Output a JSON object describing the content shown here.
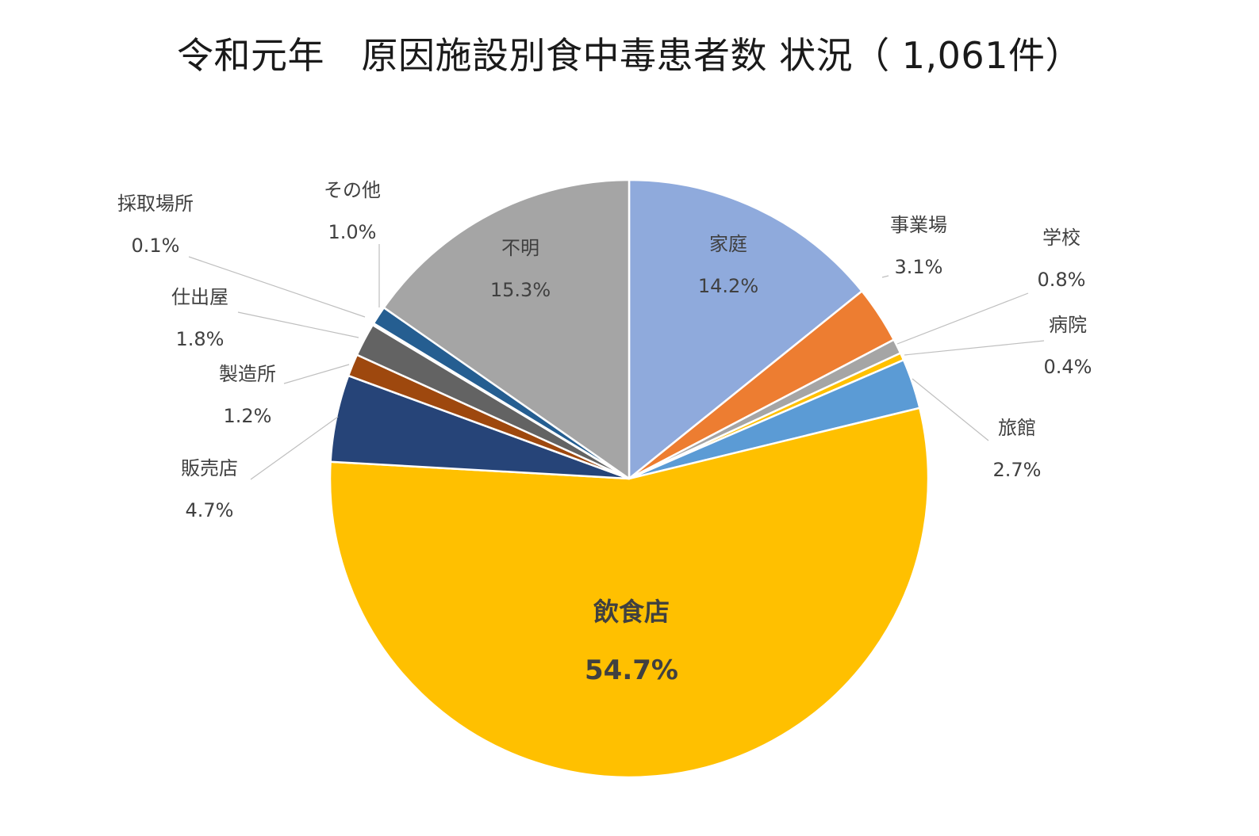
{
  "chart_data": {
    "type": "pie",
    "title": "令和元年　原因施設別食中毒患者数 状況（ 1,061件）",
    "unit": "%",
    "slices": [
      {
        "name": "家庭",
        "value": 14.2,
        "label": "14.2%",
        "color": "#8faadc"
      },
      {
        "name": "事業場",
        "value": 3.1,
        "label": "3.1%",
        "color": "#ed7d31"
      },
      {
        "name": "学校",
        "value": 0.8,
        "label": "0.8%",
        "color": "#a5a5a5"
      },
      {
        "name": "病院",
        "value": 0.4,
        "label": "0.4%",
        "color": "#ffc000"
      },
      {
        "name": "旅館",
        "value": 2.7,
        "label": "2.7%",
        "color": "#5b9bd5"
      },
      {
        "name": "飲食店",
        "value": 54.7,
        "label": "54.7%",
        "color": "#ffc000"
      },
      {
        "name": "販売店",
        "value": 4.7,
        "label": "4.7%",
        "color": "#264478"
      },
      {
        "name": "製造所",
        "value": 1.2,
        "label": "1.2%",
        "color": "#9e480e"
      },
      {
        "name": "仕出屋",
        "value": 1.8,
        "label": "1.8%",
        "color": "#636363"
      },
      {
        "name": "採取場所",
        "value": 0.1,
        "label": "0.1%",
        "color": "#997300"
      },
      {
        "name": "その他",
        "value": 1.0,
        "label": "1.0%",
        "color": "#255e91"
      },
      {
        "name": "不明",
        "value": 15.3,
        "label": "15.3%",
        "color": "#a5a5a5"
      }
    ]
  }
}
